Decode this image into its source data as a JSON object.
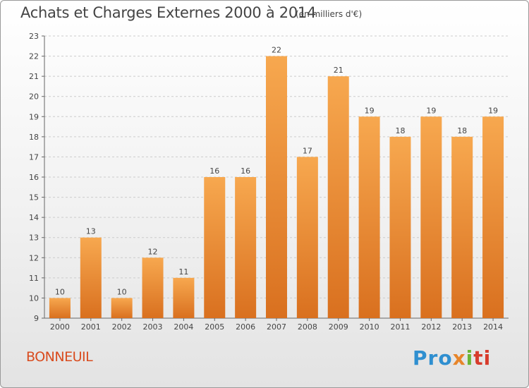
{
  "header": {
    "title": "Achats et Charges Externes 2000 à 2014",
    "unit_note": "(en milliers d'€)"
  },
  "footer": {
    "commune": "BONNEUIL",
    "logo": {
      "p1": "Pro",
      "p2": "x",
      "p3": "i",
      "p4": "ti"
    }
  },
  "colors": {
    "bar_light": "#f7a84f",
    "bar_dark": "#d9701f",
    "grid": "#cccccc",
    "text": "#444444"
  },
  "chart_data": {
    "type": "bar",
    "title": "Achats et Charges Externes 2000 à 2014",
    "subtitle": "(en milliers d'€)",
    "categories": [
      "2000",
      "2001",
      "2002",
      "2003",
      "2004",
      "2005",
      "2006",
      "2007",
      "2008",
      "2009",
      "2010",
      "2011",
      "2012",
      "2013",
      "2014"
    ],
    "values": [
      10,
      13,
      10,
      12,
      11,
      16,
      16,
      22,
      17,
      21,
      19,
      18,
      19,
      18,
      19
    ],
    "data_labels": [
      "10",
      "13",
      "10",
      "12",
      "11",
      "16",
      "16",
      "22",
      "17",
      "21",
      "19",
      "18",
      "19",
      "18",
      "19"
    ],
    "ylim": [
      9,
      23
    ],
    "yticks": [
      9,
      10,
      11,
      12,
      13,
      14,
      15,
      16,
      17,
      18,
      19,
      20,
      21,
      22,
      23
    ],
    "grid": "horizontal dashed",
    "legend": "none"
  }
}
